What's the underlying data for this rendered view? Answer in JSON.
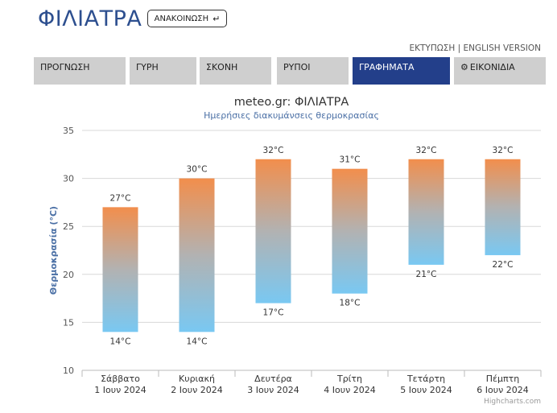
{
  "header": {
    "title": "ΦΙΛΙΑΤΡΑ",
    "announce_label": "ΑΝΑΚΟΙΝΩΣΗ",
    "announce_icon": "return-arrow-icon",
    "print_link": "ΕΚΤΥΠΩΣΗ",
    "separator": "|",
    "english_link": "ENGLISH VERSION"
  },
  "tabs": [
    {
      "label": "ΠΡΟΓΝΩΣΗ",
      "active": false
    },
    {
      "label": "ΓΥΡΗ",
      "active": false
    },
    {
      "label": "ΣΚΟΝΗ",
      "active": false
    },
    {
      "label": "ΡΥΠΟΙ",
      "active": false
    },
    {
      "label": "ΓΡΑΦΗΜΑΤΑ",
      "active": true
    },
    {
      "label": "ΕΙΚΟΝΙΔΙΑ",
      "active": false,
      "icon": "gear-icon"
    }
  ],
  "colors": {
    "accent": "#233f8a",
    "tab_bg": "#cfcfcf",
    "bar_top": "#f28e4c",
    "bar_mid": "#b2b2b2",
    "bar_bottom": "#79c8f2"
  },
  "chart_data": {
    "type": "bar",
    "subtype": "columnrange",
    "title": "meteo.gr: ΦΙΛΙΑΤΡΑ",
    "subtitle": "Ημερήσιες διακυμάνσεις θερμοκρασίας",
    "ylabel": "Θερμοκρασία (°C)",
    "ylim": [
      10,
      35
    ],
    "yticks": [
      10,
      15,
      20,
      25,
      30,
      35
    ],
    "grid": true,
    "credits": "Highcharts.com",
    "unit": "°C",
    "categories": [
      [
        "Σάββατο",
        "1 Ιουν 2024"
      ],
      [
        "Κυριακή",
        "2 Ιουν 2024"
      ],
      [
        "Δευτέρα",
        "3 Ιουν 2024"
      ],
      [
        "Τρίτη",
        "4 Ιουν 2024"
      ],
      [
        "Τετάρτη",
        "5 Ιουν 2024"
      ],
      [
        "Πέμπτη",
        "6 Ιουν 2024"
      ]
    ],
    "series": [
      {
        "low": 14,
        "high": 27
      },
      {
        "low": 14,
        "high": 30
      },
      {
        "low": 17,
        "high": 32
      },
      {
        "low": 18,
        "high": 31
      },
      {
        "low": 21,
        "high": 32
      },
      {
        "low": 22,
        "high": 32
      }
    ]
  }
}
